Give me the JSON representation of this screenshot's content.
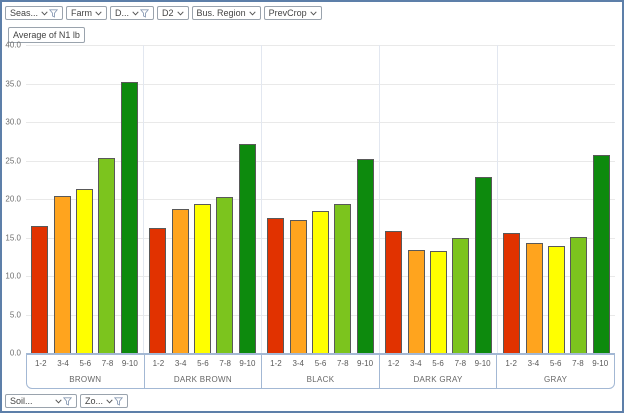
{
  "window": {
    "background": "#ffffff",
    "border_color": "#5d7fa9"
  },
  "top_filters": [
    {
      "label": "Seas...",
      "has_dropdown": true,
      "has_filter_icon": true
    },
    {
      "label": "Farm",
      "has_dropdown": true,
      "has_filter_icon": false
    },
    {
      "label": "D...",
      "has_dropdown": true,
      "has_filter_icon": true
    },
    {
      "label": "D2",
      "has_dropdown": true,
      "has_filter_icon": false
    },
    {
      "label": "Bus. Region",
      "has_dropdown": true,
      "has_filter_icon": false
    },
    {
      "label": "PrevCrop",
      "has_dropdown": true,
      "has_filter_icon": false
    }
  ],
  "bottom_filters": [
    {
      "label": "Soil...",
      "has_dropdown": true,
      "has_filter_icon": true
    },
    {
      "label": "Zo...",
      "has_dropdown": true,
      "has_filter_icon": true
    }
  ],
  "measure": {
    "label": "Average of N1 lb"
  },
  "chart_data": {
    "type": "bar",
    "title": "Average of N1 lb",
    "xlabel": "",
    "ylabel": "",
    "ylim": [
      0,
      40
    ],
    "ytick_step": 5,
    "ytick_labels": [
      "40.0",
      "35.0",
      "30.0",
      "25.0",
      "20.0",
      "15.0",
      "10.0",
      "5.0",
      "0.0"
    ],
    "grid": "horizontal",
    "legend": "none",
    "categories": [
      "BROWN",
      "DARK BROWN",
      "BLACK",
      "DARK GRAY",
      "GRAY"
    ],
    "series": [
      {
        "name": "1-2",
        "color": "#e13200",
        "values": [
          16.5,
          16.2,
          17.5,
          15.8,
          15.6
        ]
      },
      {
        "name": "3-4",
        "color": "#ffa41e",
        "values": [
          20.4,
          18.7,
          17.3,
          13.4,
          14.3
        ]
      },
      {
        "name": "5-6",
        "color": "#ffff00",
        "values": [
          21.3,
          19.3,
          18.5,
          13.2,
          13.9
        ]
      },
      {
        "name": "7-8",
        "color": "#7cc41e",
        "values": [
          25.3,
          20.3,
          19.4,
          15.0,
          15.1
        ]
      },
      {
        "name": "9-10",
        "color": "#0d8a0d",
        "values": [
          35.2,
          27.2,
          25.2,
          22.8,
          25.7
        ]
      }
    ]
  },
  "colors": {
    "bar_border": "#595959",
    "gridline": "#e9e9e9",
    "axis_border": "#a3b8d4",
    "label_text": "#666666",
    "group_separator": "#e2e7f0"
  }
}
